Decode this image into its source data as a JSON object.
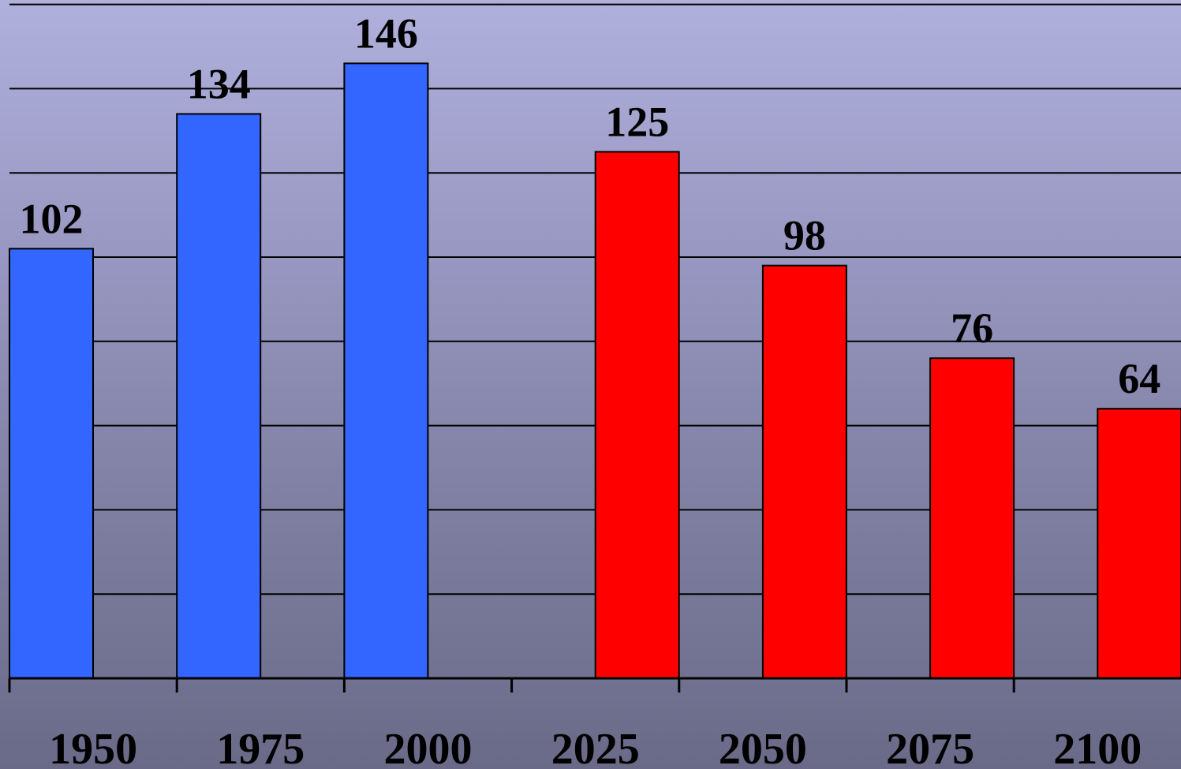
{
  "chart_data": {
    "type": "bar",
    "title": "",
    "xlabel": "",
    "ylabel": "",
    "categories": [
      "1950",
      "1975",
      "2000",
      "2025",
      "2050",
      "2075",
      "2100"
    ],
    "x_ticks": [
      "1950",
      "1975",
      "2000",
      "2025",
      "2050",
      "2075",
      "2100"
    ],
    "values": [
      102,
      134,
      146,
      125,
      98,
      76,
      64
    ],
    "value_labels": [
      "102",
      "134",
      "146",
      "125",
      "98",
      "76",
      "64"
    ],
    "bar_positions": [
      1950,
      1975,
      2000,
      2037.5,
      2062.5,
      2087.5,
      2112.5
    ],
    "bar_colors": [
      "#3366ff",
      "#3366ff",
      "#3366ff",
      "#ff0000",
      "#ff0000",
      "#ff0000",
      "#ff0000"
    ],
    "ylim": [
      0,
      160
    ],
    "grid": true,
    "legend": "none"
  },
  "colors": {
    "historical": "#3366ff",
    "projected": "#ff0000",
    "gridline": "#000000"
  }
}
